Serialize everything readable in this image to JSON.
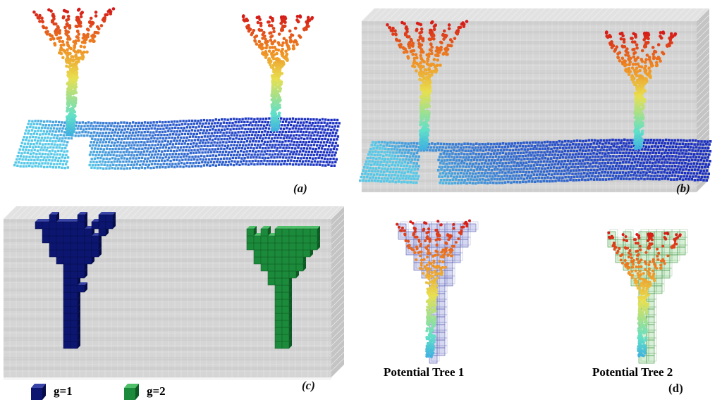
{
  "panels": {
    "a": {
      "label": "(a)"
    },
    "b": {
      "label": "(b)"
    },
    "c": {
      "label": "(c)"
    },
    "d": {
      "label": "(d)"
    }
  },
  "captions": {
    "tree1": "Potential Tree 1",
    "tree2": "Potential Tree 2"
  },
  "legend": {
    "items": [
      {
        "label": "g=1",
        "color": "#0c1670",
        "icon": "blue-cube-icon"
      },
      {
        "label": "g=2",
        "color": "#1b8a3a",
        "icon": "green-cube-icon"
      }
    ]
  },
  "colors": {
    "ground_dark": "#1a2fc0",
    "ground_light": "#55c8e8",
    "trunk": "#e8e050",
    "crown_mid": "#f08a20",
    "crown_tip": "#d41818",
    "voxel_grid": "#b8b8b8",
    "tree1_voxel": "#8a90d8",
    "tree2_voxel": "#8ad08a"
  }
}
